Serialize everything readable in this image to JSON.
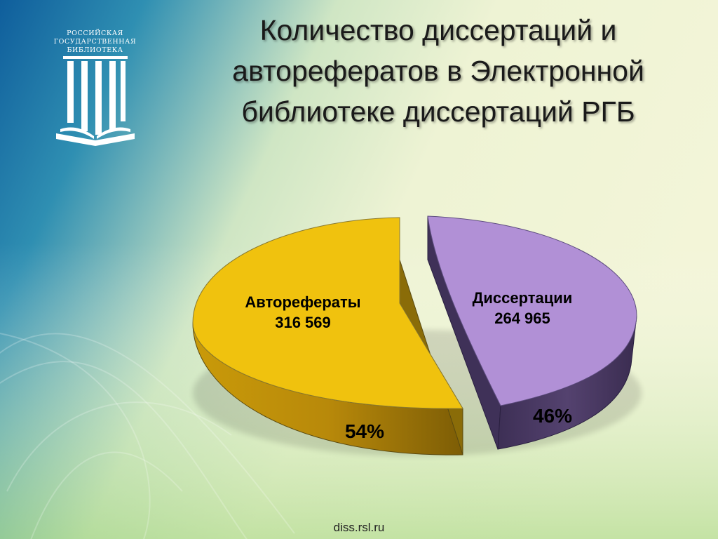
{
  "slide": {
    "title_lines": [
      "Количество диссертаций и",
      "авторефератов в Электронной",
      "библиотеке диссертаций  РГБ"
    ],
    "footer": "diss.rsl.ru"
  },
  "logo": {
    "lines": [
      "РОССИЙСКАЯ",
      "ГОСУДАРСТВЕННАЯ",
      "БИБЛИОТЕКА"
    ],
    "icon": "columns-book-logo"
  },
  "colors": {
    "avtoreferaty": "#f0c20e",
    "dissertatsii": "#b190d6"
  },
  "chart_data": {
    "type": "pie",
    "style": "3d-exploded",
    "title": "Количество диссертаций и авторефератов в Электронной библиотеке диссертаций  РГБ",
    "slices": [
      {
        "label": "Авторефераты",
        "value": 316569,
        "value_label": "316 569",
        "percent_label": "54%"
      },
      {
        "label": "Диссертации",
        "value": 264965,
        "value_label": "264 965",
        "percent_label": "46%"
      }
    ]
  }
}
